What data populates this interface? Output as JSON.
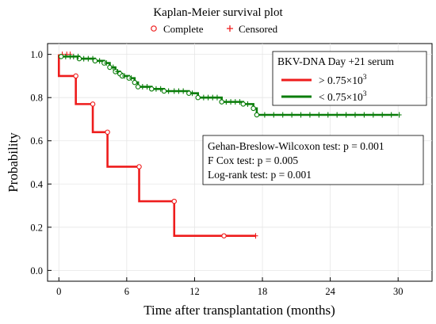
{
  "chart_data": {
    "type": "line",
    "title": "Kaplan-Meier survival plot",
    "xlabel": "Time after transplantation (months)",
    "ylabel": "Probability",
    "xlim": [
      -1,
      33
    ],
    "ylim": [
      -0.05,
      1.05
    ],
    "xticks": [
      "0",
      "6",
      "12",
      "18",
      "24",
      "30"
    ],
    "yticks": [
      "0.0",
      "0.2",
      "0.4",
      "0.6",
      "0.8",
      "1.0"
    ],
    "grid": true,
    "marker_legend": {
      "position": "top",
      "complete": "Complete",
      "censored": "Censored"
    },
    "legend": {
      "position": "top-right",
      "title": "BKV-DNA Day +21 serum",
      "entries": [
        {
          "prefix": "> 0.75×10",
          "sup": "3",
          "color": "#ee1c1c"
        },
        {
          "prefix": "< 0.75×10",
          "sup": "3",
          "color": "#0a7d0a"
        }
      ]
    },
    "annotations": [
      "Gehan-Breslow-Wilcoxon test: p = 0.001",
      "F Cox test: p = 0.005",
      "Log-rank test: p = 0.001"
    ],
    "series": [
      {
        "name": "> 0.75×10³",
        "color": "#ee1c1c",
        "step": [
          [
            0,
            1.0
          ],
          [
            1.5,
            0.9
          ],
          [
            3.0,
            0.77
          ],
          [
            4.3,
            0.64
          ],
          [
            7.1,
            0.48
          ],
          [
            10.2,
            0.32
          ],
          [
            14.6,
            0.16
          ],
          [
            17.4,
            0.16
          ]
        ],
        "events": [
          [
            1.5,
            0.9
          ],
          [
            3.0,
            0.77
          ],
          [
            4.3,
            0.64
          ],
          [
            7.1,
            0.48
          ],
          [
            10.2,
            0.32
          ],
          [
            14.6,
            0.16
          ]
        ],
        "censored": [
          [
            0.3,
            1.0
          ],
          [
            0.7,
            1.0
          ],
          [
            1.0,
            1.0
          ],
          [
            17.4,
            0.16
          ]
        ]
      },
      {
        "name": "< 0.75×10³",
        "color": "#0a7d0a",
        "step": [
          [
            0,
            0.99
          ],
          [
            1.8,
            0.99
          ],
          [
            1.8,
            0.98
          ],
          [
            3.2,
            0.98
          ],
          [
            3.2,
            0.97
          ],
          [
            4.0,
            0.97
          ],
          [
            4.0,
            0.96
          ],
          [
            4.5,
            0.96
          ],
          [
            4.5,
            0.94
          ],
          [
            5.0,
            0.94
          ],
          [
            5.0,
            0.92
          ],
          [
            5.4,
            0.92
          ],
          [
            5.4,
            0.91
          ],
          [
            5.6,
            0.91
          ],
          [
            5.6,
            0.9
          ],
          [
            6.2,
            0.9
          ],
          [
            6.2,
            0.89
          ],
          [
            6.7,
            0.89
          ],
          [
            6.7,
            0.87
          ],
          [
            7.0,
            0.87
          ],
          [
            7.0,
            0.85
          ],
          [
            8.2,
            0.85
          ],
          [
            8.2,
            0.84
          ],
          [
            9.3,
            0.84
          ],
          [
            9.3,
            0.83
          ],
          [
            11.5,
            0.83
          ],
          [
            11.5,
            0.82
          ],
          [
            12.3,
            0.82
          ],
          [
            12.3,
            0.8
          ],
          [
            14.4,
            0.8
          ],
          [
            14.4,
            0.78
          ],
          [
            16.3,
            0.78
          ],
          [
            16.3,
            0.77
          ],
          [
            17.2,
            0.77
          ],
          [
            17.2,
            0.75
          ],
          [
            17.5,
            0.75
          ],
          [
            17.5,
            0.72
          ],
          [
            30.0,
            0.72
          ]
        ],
        "events": [
          [
            0.2,
            0.99
          ],
          [
            1.8,
            0.98
          ],
          [
            3.2,
            0.97
          ],
          [
            4.0,
            0.96
          ],
          [
            4.5,
            0.94
          ],
          [
            5.0,
            0.92
          ],
          [
            5.4,
            0.91
          ],
          [
            5.6,
            0.9
          ],
          [
            6.2,
            0.89
          ],
          [
            6.7,
            0.87
          ],
          [
            7.0,
            0.85
          ],
          [
            8.2,
            0.84
          ],
          [
            9.3,
            0.83
          ],
          [
            11.5,
            0.82
          ],
          [
            12.3,
            0.8
          ],
          [
            14.4,
            0.78
          ],
          [
            16.3,
            0.77
          ],
          [
            17.2,
            0.75
          ],
          [
            17.5,
            0.72
          ]
        ],
        "censored": [
          [
            0.6,
            0.99
          ],
          [
            1.0,
            0.99
          ],
          [
            1.3,
            0.99
          ],
          [
            1.7,
            0.99
          ],
          [
            2.2,
            0.98
          ],
          [
            2.6,
            0.98
          ],
          [
            3.0,
            0.98
          ],
          [
            3.6,
            0.97
          ],
          [
            4.2,
            0.96
          ],
          [
            4.8,
            0.94
          ],
          [
            5.2,
            0.92
          ],
          [
            5.8,
            0.9
          ],
          [
            6.4,
            0.89
          ],
          [
            7.4,
            0.85
          ],
          [
            7.8,
            0.85
          ],
          [
            8.6,
            0.84
          ],
          [
            9.0,
            0.84
          ],
          [
            9.7,
            0.83
          ],
          [
            10.2,
            0.83
          ],
          [
            10.6,
            0.83
          ],
          [
            11.0,
            0.83
          ],
          [
            11.8,
            0.82
          ],
          [
            12.8,
            0.8
          ],
          [
            13.2,
            0.8
          ],
          [
            13.6,
            0.8
          ],
          [
            14.0,
            0.8
          ],
          [
            14.8,
            0.78
          ],
          [
            15.2,
            0.78
          ],
          [
            15.6,
            0.78
          ],
          [
            16.0,
            0.78
          ],
          [
            16.7,
            0.77
          ],
          [
            18.2,
            0.72
          ],
          [
            19.0,
            0.72
          ],
          [
            19.8,
            0.72
          ],
          [
            20.6,
            0.72
          ],
          [
            21.4,
            0.72
          ],
          [
            22.2,
            0.72
          ],
          [
            23.0,
            0.72
          ],
          [
            23.8,
            0.72
          ],
          [
            24.6,
            0.72
          ],
          [
            25.4,
            0.72
          ],
          [
            26.2,
            0.72
          ],
          [
            27.0,
            0.72
          ],
          [
            27.8,
            0.72
          ],
          [
            28.6,
            0.72
          ],
          [
            29.4,
            0.72
          ],
          [
            30.1,
            0.72
          ]
        ]
      }
    ]
  }
}
